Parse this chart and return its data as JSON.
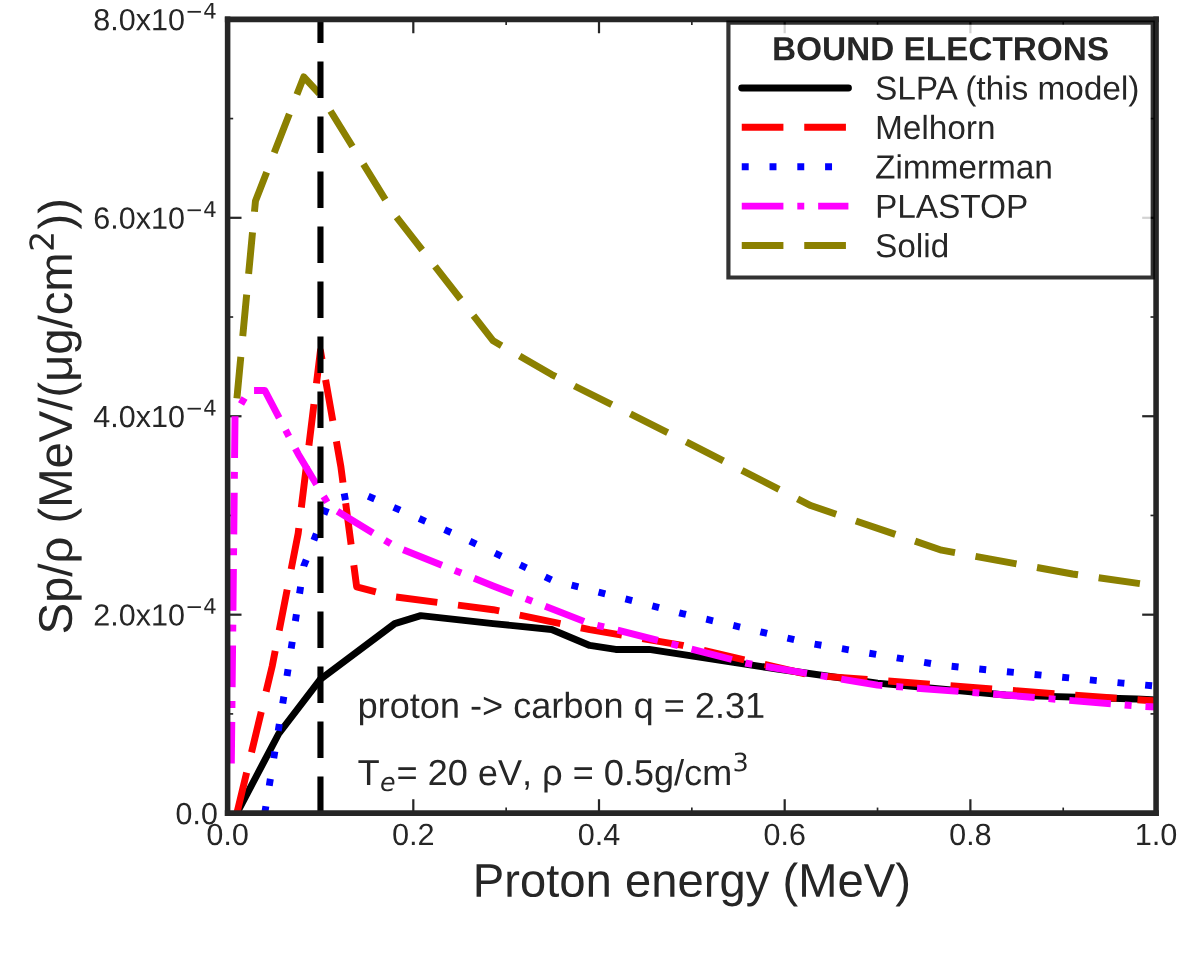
{
  "chart_data": {
    "type": "line",
    "xlabel": "Proton energy (MeV)",
    "ylabel": "Sp/ρ (MeV/(μg/cm$^{2}$))",
    "legend_title": "BOUND ELECTRONS",
    "legend": "top right",
    "grid": false,
    "marker": "none",
    "xlim": [
      0,
      1.0
    ],
    "xticks": [
      {
        "value": 0,
        "label": "0.0"
      },
      0.2,
      0.4,
      0.6,
      0.8,
      {
        "value": 1.0,
        "label": "1.0"
      }
    ],
    "ylim": [
      0,
      0.0008
    ],
    "yticks": [
      {
        "value": 0,
        "label": "0.0"
      },
      {
        "value": 0.0002,
        "label": "2.0x10$^{−4}$"
      },
      {
        "value": 0.0004,
        "label": "4.0x10$^{−4}$"
      },
      {
        "value": 0.0006,
        "label": "6.0x10$^{−4}$"
      },
      {
        "value": 0.0008,
        "label": "8.0x10$^{−4}$"
      }
    ],
    "series": [
      {
        "name": "SLPA (this model)",
        "color": "#000000",
        "line_style": "solid",
        "x": [
          0.01,
          0.055,
          0.1,
          0.18,
          0.208,
          0.286,
          0.349,
          0.39,
          0.418,
          0.454,
          0.594,
          0.7,
          0.838,
          0.979,
          1.0
        ],
        "values": [
          0,
          8e-05,
          0.000135,
          0.000191,
          0.000199,
          0.000191,
          0.000185,
          0.000169,
          0.000165,
          0.000165,
          0.000145,
          0.000131,
          0.000119,
          0.000115,
          0.000114
        ]
      },
      {
        "name": "Melhorn",
        "color": "#ff0000",
        "line_style": "dashed",
        "x": [
          0.01,
          0.048,
          0.076,
          0.1,
          0.122,
          0.139,
          0.18,
          0.286,
          0.39,
          0.49,
          0.628,
          0.769,
          0.91,
          1.0
        ],
        "values": [
          0,
          0.000148,
          0.000282,
          0.000466,
          0.000349,
          0.000228,
          0.000218,
          0.000205,
          0.000185,
          0.000169,
          0.000139,
          0.000129,
          0.000119,
          0.000113
        ]
      },
      {
        "name": "Zimmerman",
        "color": "#0000ff",
        "line_style": "dotted",
        "x": [
          0.04,
          0.061,
          0.082,
          0.11,
          0.145,
          0.25,
          0.349,
          0.49,
          0.628,
          0.769,
          0.964,
          1.0
        ],
        "values": [
          0,
          0.00012,
          0.000249,
          0.000316,
          0.000322,
          0.000279,
          0.000235,
          0.000201,
          0.000171,
          0.000149,
          0.000131,
          0.000128
        ]
      },
      {
        "name": "PLASTOP",
        "color": "#ff00ff",
        "line_style": "dashdot",
        "x": [
          0.004,
          0.008,
          0.023,
          0.04,
          0.076,
          0.11,
          0.18,
          0.286,
          0.39,
          0.418,
          0.559,
          0.7,
          0.838,
          0.979,
          1.0
        ],
        "values": [
          5e-05,
          0.000402,
          0.000426,
          0.000426,
          0.000362,
          0.000309,
          0.000269,
          0.000229,
          0.000191,
          0.000185,
          0.000151,
          0.000129,
          0.000119,
          0.000108,
          0.000107
        ]
      },
      {
        "name": "Solid",
        "color": "#8b8000",
        "line_style": "dashed",
        "x": [
          0.01,
          0.03,
          0.082,
          0.1,
          0.18,
          0.286,
          0.349,
          0.49,
          0.628,
          0.769,
          0.91,
          1.0
        ],
        "values": [
          0.000418,
          0.000617,
          0.000742,
          0.000724,
          0.000603,
          0.000476,
          0.000442,
          0.000376,
          0.00031,
          0.000265,
          0.000241,
          0.000229
        ]
      }
    ],
    "ref_lines": [
      {
        "axis": "x",
        "value": 0.1,
        "color": "#000000",
        "line_style": "dashed"
      }
    ],
    "annotations": [
      "proton -> carbon q = 2.31",
      "T$_{e}$= 20 eV, ρ = 0.5g/cm$^{3}$"
    ]
  }
}
